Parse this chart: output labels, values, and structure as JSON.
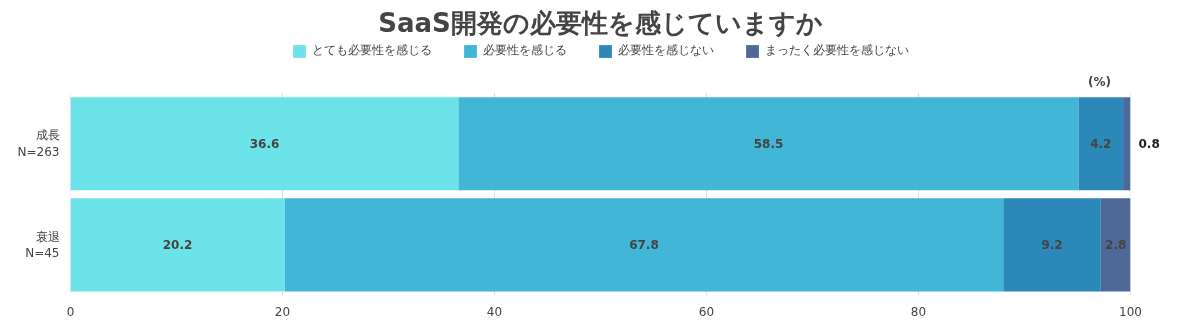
{
  "chart_data": {
    "type": "bar",
    "orientation": "horizontal",
    "stacked": true,
    "title": "SaaS開発の必要性を感じていますか",
    "categories": [
      "成長\nN=263",
      "衰退\nN=45"
    ],
    "series": [
      {
        "name": "とても必要性を感じる",
        "color": "#6ce3e8",
        "values": [
          36.6,
          20.2
        ]
      },
      {
        "name": "必要性を感じる",
        "color": "#42b6d6",
        "values": [
          58.5,
          67.8
        ]
      },
      {
        "name": "必要性を感じない",
        "color": "#2c88b8",
        "values": [
          4.2,
          9.2
        ]
      },
      {
        "name": "まったく必要性を感じない",
        "color": "#4e6898",
        "values": [
          0.8,
          2.8
        ]
      }
    ],
    "xlim": [
      0,
      100
    ],
    "xticks": [
      0,
      20,
      40,
      60,
      80,
      100
    ],
    "grid": "x",
    "legend": "top",
    "data_labels": true,
    "annotations": [
      "(%)"
    ]
  }
}
